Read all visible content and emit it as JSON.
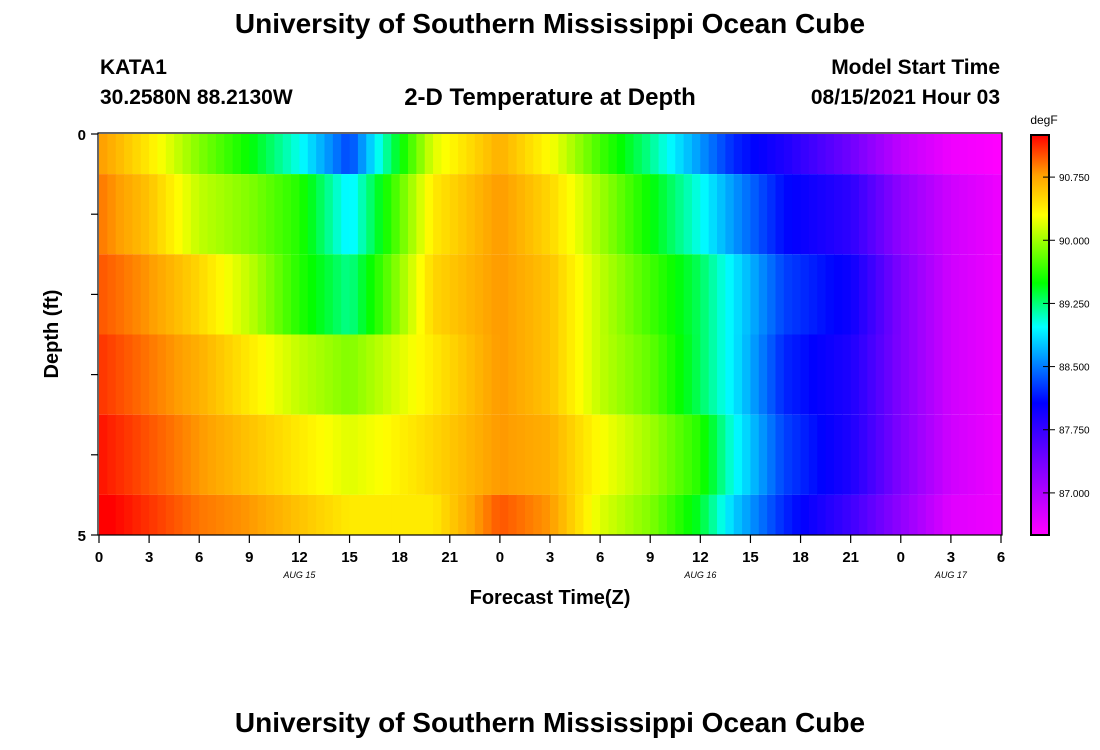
{
  "header": {
    "title": "University of Southern Mississippi Ocean Cube",
    "station_id": "KATA1",
    "coordinates": "30.2580N  88.2130W",
    "subtitle": "2-D Temperature at Depth",
    "model_start_label": "Model Start Time",
    "model_start_value": "08/15/2021 Hour 03"
  },
  "footer": {
    "title": "University of Southern Mississippi Ocean Cube"
  },
  "chart_data": {
    "type": "heatmap",
    "xlabel": "Forecast Time(Z)",
    "ylabel": "Depth (ft)",
    "x_tick_labels": [
      "0",
      "3",
      "6",
      "9",
      "12",
      "15",
      "18",
      "21",
      "0",
      "3",
      "6",
      "9",
      "12",
      "15",
      "18",
      "21",
      "0",
      "3",
      "6"
    ],
    "x_range_hours": [
      0,
      54
    ],
    "date_labels": [
      {
        "hour": 12,
        "text": "AUG 15"
      },
      {
        "hour": 36,
        "text": "AUG 16"
      },
      {
        "hour": 51,
        "text": "AUG 17"
      }
    ],
    "y_tick_labels": [
      "0",
      "5"
    ],
    "y_range": [
      0,
      5
    ],
    "depth_bands": [
      0.5,
      1.5,
      2.5,
      3.5,
      4.5,
      5.0
    ],
    "colorbar": {
      "unit": "degF",
      "min": 86.5,
      "max": 91.25,
      "tick_labels": [
        "90.750",
        "90.000",
        "89.250",
        "88.500",
        "87.750",
        "87.000"
      ],
      "tick_values": [
        90.75,
        90.0,
        89.25,
        88.5,
        87.75,
        87.0
      ]
    },
    "temperature_keyframes": [
      {
        "hour": 0,
        "values": [
          90.8,
          90.9,
          91.0,
          91.1,
          91.2,
          91.3
        ]
      },
      {
        "hour": 3,
        "values": [
          90.4,
          90.6,
          90.8,
          90.9,
          91.0,
          91.1
        ]
      },
      {
        "hour": 6,
        "values": [
          89.9,
          90.1,
          90.5,
          90.7,
          90.8,
          90.9
        ]
      },
      {
        "hour": 9,
        "values": [
          89.5,
          89.9,
          90.1,
          90.4,
          90.6,
          90.8
        ]
      },
      {
        "hour": 12,
        "values": [
          89.0,
          89.6,
          89.6,
          90.1,
          90.4,
          90.6
        ]
      },
      {
        "hour": 15,
        "values": [
          88.3,
          88.9,
          89.2,
          89.9,
          90.2,
          90.4
        ]
      },
      {
        "hour": 17,
        "values": [
          89.1,
          89.5,
          89.7,
          90.1,
          90.3,
          90.4
        ]
      },
      {
        "hour": 20,
        "values": [
          90.2,
          90.4,
          90.5,
          90.4,
          90.5,
          90.4
        ]
      },
      {
        "hour": 24,
        "values": [
          90.7,
          90.8,
          90.8,
          90.8,
          90.8,
          91.0
        ]
      },
      {
        "hour": 27,
        "values": [
          90.3,
          90.5,
          90.6,
          90.6,
          90.7,
          90.8
        ]
      },
      {
        "hour": 30,
        "values": [
          89.7,
          90.0,
          90.1,
          90.1,
          90.3,
          90.2
        ]
      },
      {
        "hour": 33,
        "values": [
          89.2,
          89.5,
          89.7,
          89.8,
          90.0,
          89.9
        ]
      },
      {
        "hour": 36,
        "values": [
          88.6,
          89.0,
          89.3,
          89.3,
          89.6,
          89.4
        ]
      },
      {
        "hour": 38,
        "values": [
          88.2,
          88.6,
          88.9,
          88.9,
          89.0,
          88.8
        ]
      },
      {
        "hour": 41,
        "values": [
          87.9,
          88.1,
          88.3,
          88.2,
          88.3,
          88.2
        ]
      },
      {
        "hour": 45,
        "values": [
          87.4,
          87.8,
          88.0,
          87.9,
          87.9,
          87.7
        ]
      },
      {
        "hour": 48,
        "values": [
          86.9,
          87.2,
          87.3,
          87.3,
          87.3,
          87.2
        ]
      },
      {
        "hour": 51,
        "values": [
          86.6,
          86.8,
          86.8,
          86.8,
          86.8,
          86.7
        ]
      },
      {
        "hour": 54,
        "values": [
          86.5,
          86.6,
          86.6,
          86.6,
          86.6,
          86.6
        ]
      }
    ]
  }
}
